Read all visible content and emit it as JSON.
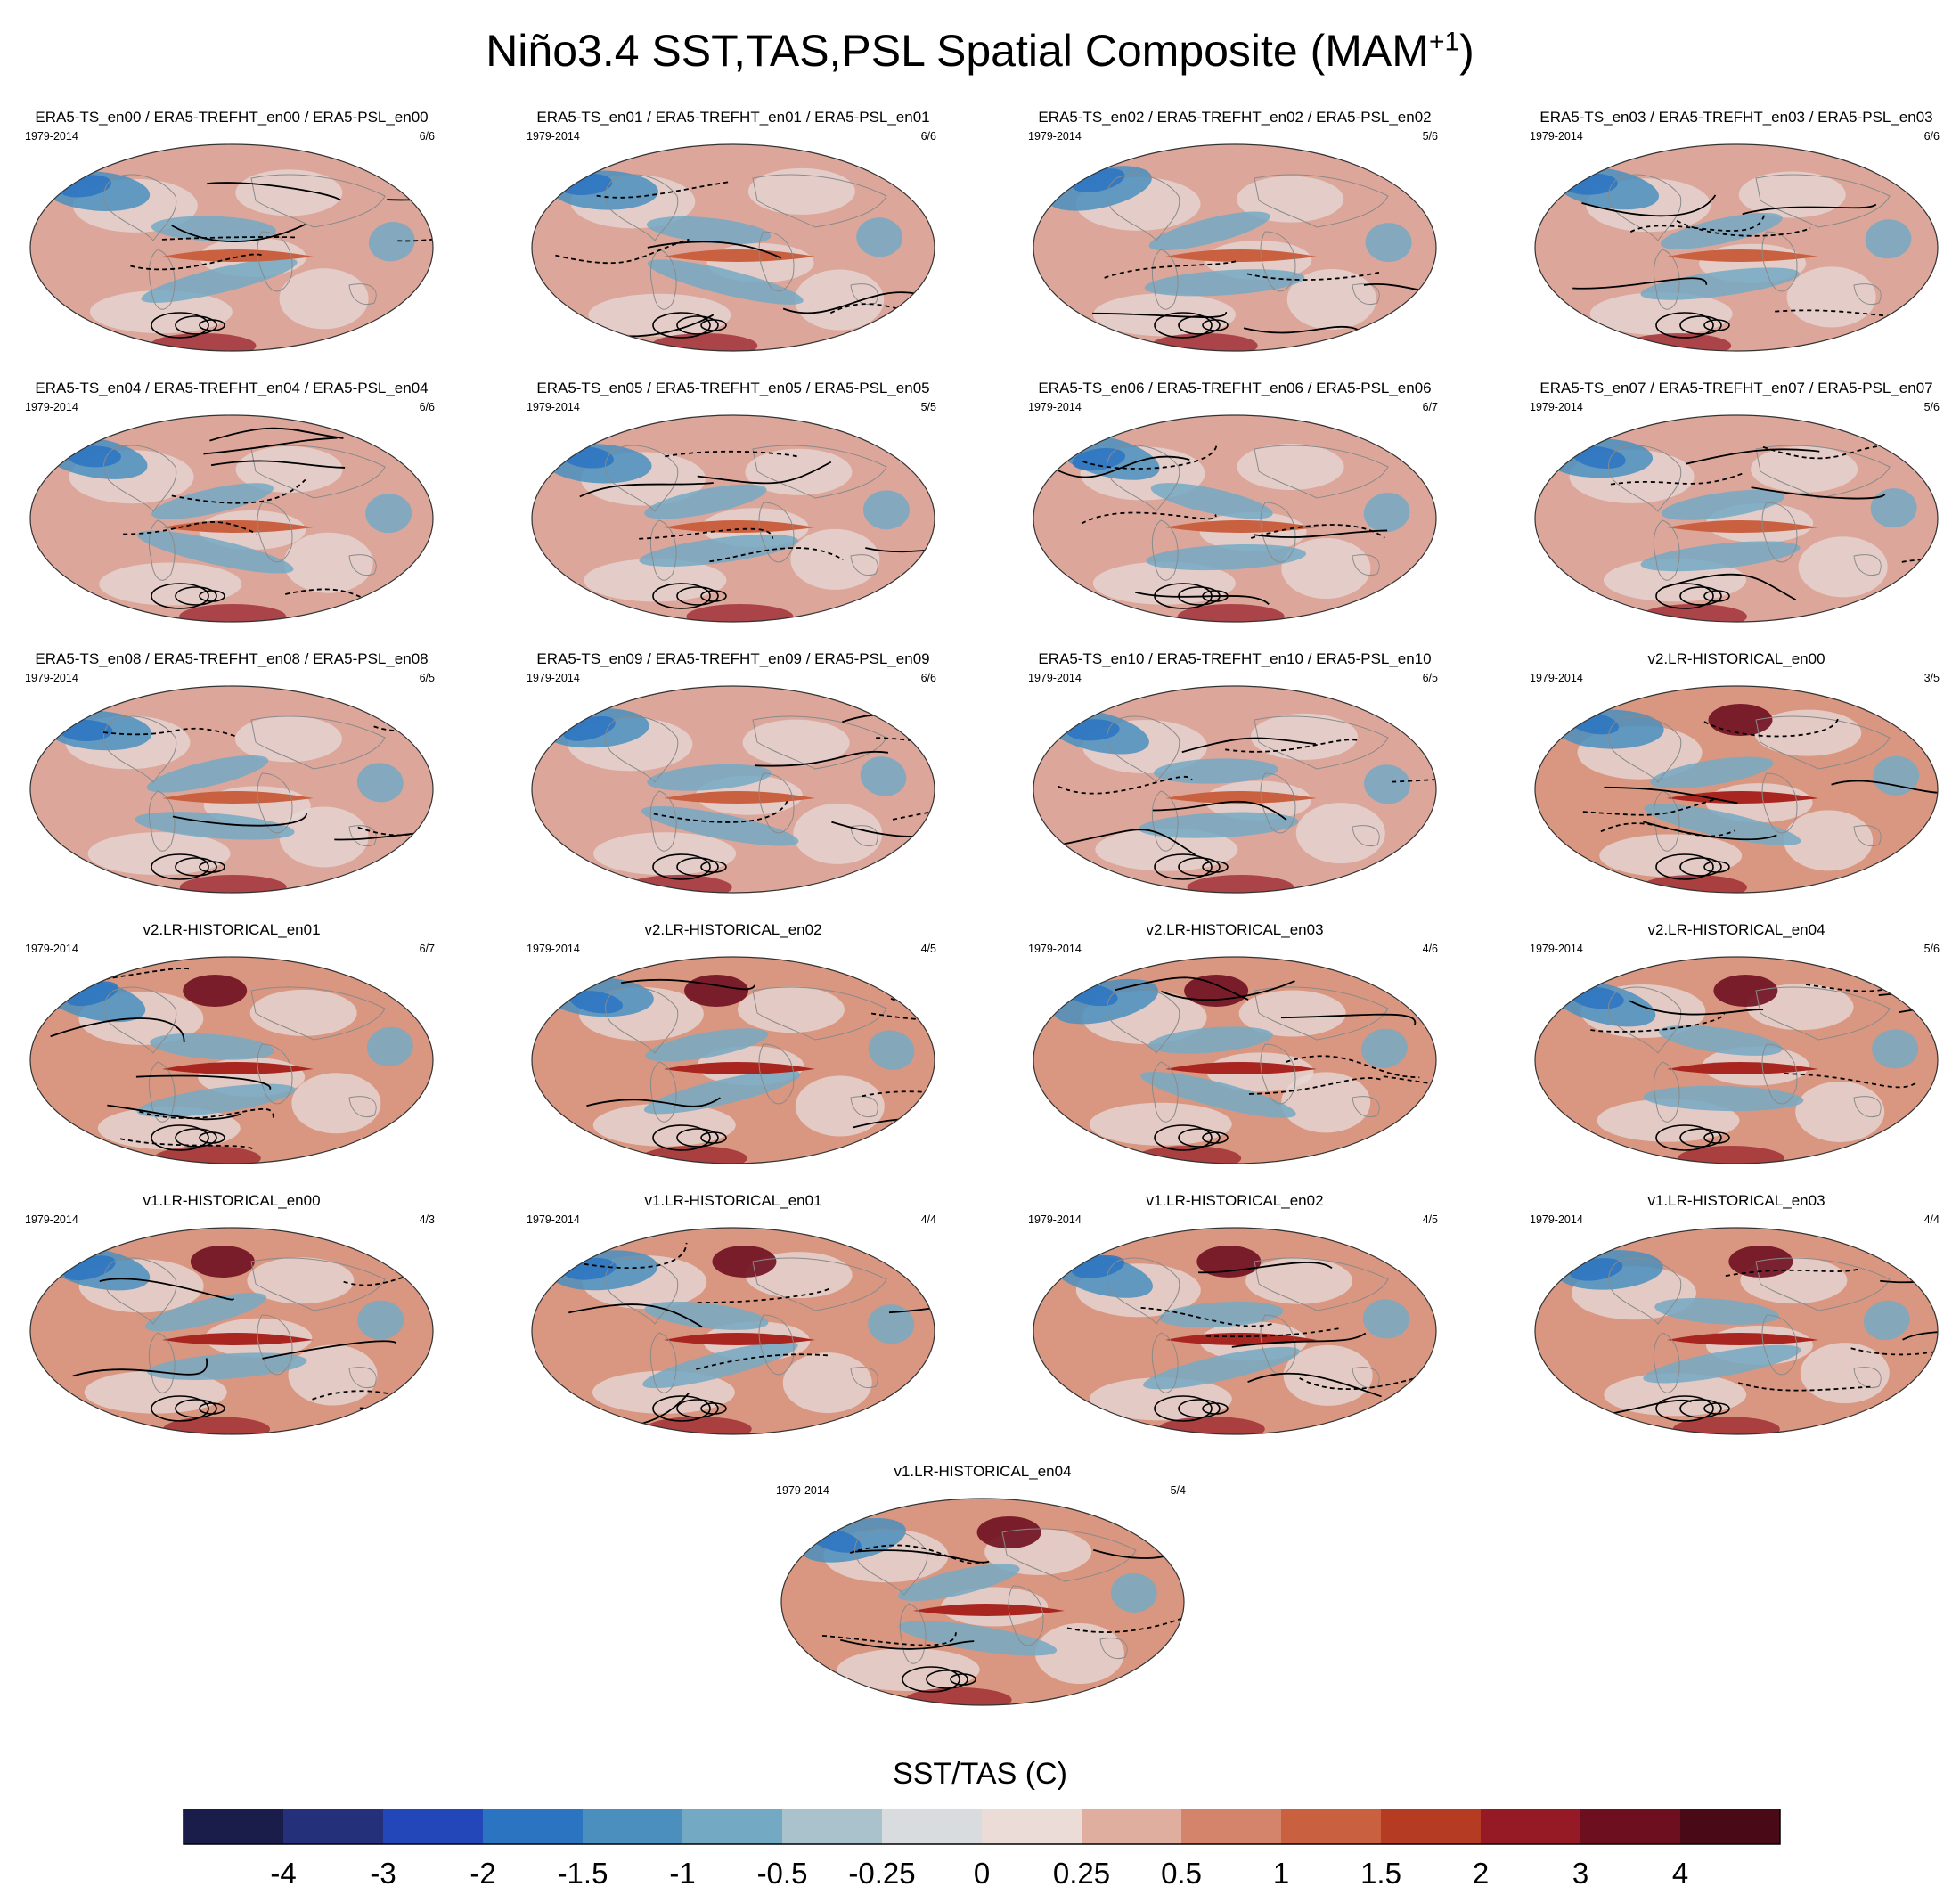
{
  "title": {
    "main": "Niño3.4 SST,TAS,PSL Spatial Composite (MAM",
    "superscript": "+1",
    "close": ")"
  },
  "chart_data": {
    "type": "heatmap",
    "description_variable": "SST/TAS composite with PSL contours",
    "panels": [
      {
        "title": "ERA5-TS_en00 / ERA5-TREFHT_en00 / ERA5-PSL_en00",
        "years": "1979-2014",
        "count": "6/6",
        "kind": "obs"
      },
      {
        "title": "ERA5-TS_en01 / ERA5-TREFHT_en01 / ERA5-PSL_en01",
        "years": "1979-2014",
        "count": "6/6",
        "kind": "obs"
      },
      {
        "title": "ERA5-TS_en02 / ERA5-TREFHT_en02 / ERA5-PSL_en02",
        "years": "1979-2014",
        "count": "5/6",
        "kind": "obs"
      },
      {
        "title": "ERA5-TS_en03 / ERA5-TREFHT_en03 / ERA5-PSL_en03",
        "years": "1979-2014",
        "count": "6/6",
        "kind": "obs"
      },
      {
        "title": "ERA5-TS_en04 / ERA5-TREFHT_en04 / ERA5-PSL_en04",
        "years": "1979-2014",
        "count": "6/6",
        "kind": "obs"
      },
      {
        "title": "ERA5-TS_en05 / ERA5-TREFHT_en05 / ERA5-PSL_en05",
        "years": "1979-2014",
        "count": "5/5",
        "kind": "obs"
      },
      {
        "title": "ERA5-TS_en06 / ERA5-TREFHT_en06 / ERA5-PSL_en06",
        "years": "1979-2014",
        "count": "6/7",
        "kind": "obs"
      },
      {
        "title": "ERA5-TS_en07 / ERA5-TREFHT_en07 / ERA5-PSL_en07",
        "years": "1979-2014",
        "count": "5/6",
        "kind": "obs"
      },
      {
        "title": "ERA5-TS_en08 / ERA5-TREFHT_en08 / ERA5-PSL_en08",
        "years": "1979-2014",
        "count": "6/5",
        "kind": "obs"
      },
      {
        "title": "ERA5-TS_en09 / ERA5-TREFHT_en09 / ERA5-PSL_en09",
        "years": "1979-2014",
        "count": "6/6",
        "kind": "obs"
      },
      {
        "title": "ERA5-TS_en10 / ERA5-TREFHT_en10 / ERA5-PSL_en10",
        "years": "1979-2014",
        "count": "6/5",
        "kind": "obs"
      },
      {
        "title": "v2.LR-HISTORICAL_en00",
        "years": "1979-2014",
        "count": "3/5",
        "kind": "model"
      },
      {
        "title": "v2.LR-HISTORICAL_en01",
        "years": "1979-2014",
        "count": "6/7",
        "kind": "model"
      },
      {
        "title": "v2.LR-HISTORICAL_en02",
        "years": "1979-2014",
        "count": "4/5",
        "kind": "model"
      },
      {
        "title": "v2.LR-HISTORICAL_en03",
        "years": "1979-2014",
        "count": "4/6",
        "kind": "model"
      },
      {
        "title": "v2.LR-HISTORICAL_en04",
        "years": "1979-2014",
        "count": "5/6",
        "kind": "model"
      },
      {
        "title": "v1.LR-HISTORICAL_en00",
        "years": "1979-2014",
        "count": "4/3",
        "kind": "model"
      },
      {
        "title": "v1.LR-HISTORICAL_en01",
        "years": "1979-2014",
        "count": "4/4",
        "kind": "model"
      },
      {
        "title": "v1.LR-HISTORICAL_en02",
        "years": "1979-2014",
        "count": "4/5",
        "kind": "model"
      },
      {
        "title": "v1.LR-HISTORICAL_en03",
        "years": "1979-2014",
        "count": "4/4",
        "kind": "model"
      },
      {
        "title": "v1.LR-HISTORICAL_en04",
        "years": "1979-2014",
        "count": "5/4",
        "kind": "model"
      }
    ],
    "colorbar": {
      "title": "SST/TAS (C)",
      "tick_labels": [
        "-4",
        "-3",
        "-2",
        "-1.5",
        "-1",
        "-0.5",
        "-0.25",
        "0",
        "0.25",
        "0.5",
        "1",
        "1.5",
        "2",
        "3",
        "4"
      ],
      "colors": [
        "#1a1c4a",
        "#25307a",
        "#2346b8",
        "#2b74c2",
        "#4a8fbe",
        "#74a9c4",
        "#a9c2cc",
        "#d8dcdf",
        "#ecdcd8",
        "#dfae9f",
        "#d4846a",
        "#c9603f",
        "#b53b22",
        "#961a25",
        "#6e0f20",
        "#4a0916"
      ]
    }
  }
}
